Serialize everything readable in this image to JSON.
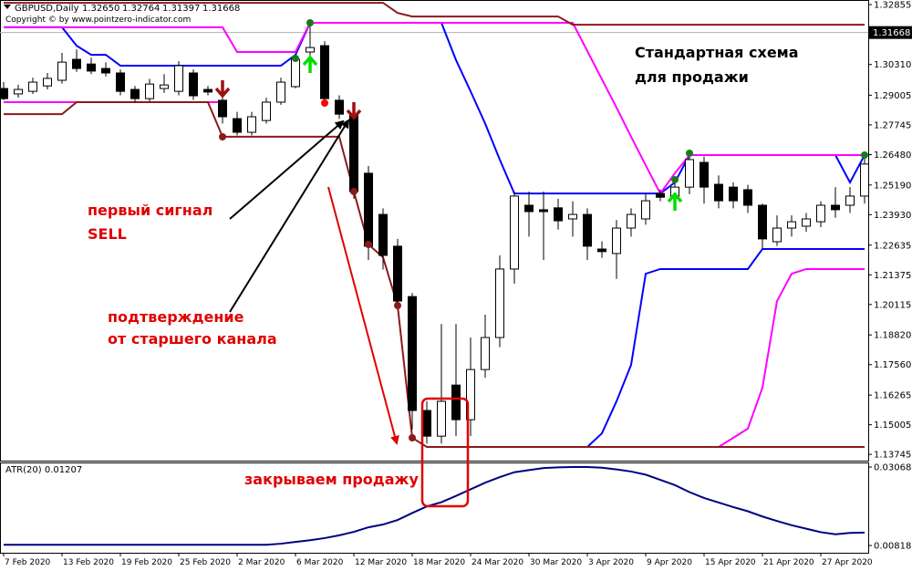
{
  "header": {
    "symbol": "GBPUSD,Daily",
    "quote": [
      "1.32650",
      "1.32764",
      "1.31397",
      "1.31668"
    ],
    "copyright": "Copyright © by www.pointzero-indicator.com"
  },
  "chart_data": [
    {
      "type": "candlestick",
      "categories": [
        "7 Feb 2020",
        null,
        null,
        null,
        "13 Feb 2020",
        null,
        null,
        null,
        "19 Feb 2020",
        null,
        null,
        null,
        "25 Feb 2020",
        null,
        null,
        null,
        "2 Mar 2020",
        null,
        null,
        null,
        "6 Mar 2020",
        null,
        null,
        null,
        "12 Mar 2020",
        null,
        null,
        null,
        "18 Mar 2020",
        null,
        null,
        null,
        "24 Mar 2020",
        null,
        null,
        null,
        "30 Mar 2020",
        null,
        null,
        null,
        "3 Apr 2020",
        null,
        null,
        null,
        "9 Apr 2020",
        null,
        null,
        null,
        "15 Apr 2020",
        null,
        null,
        null,
        "21 Apr 2020",
        null,
        null,
        null,
        "27 Apr 2020",
        null,
        null,
        null
      ],
      "open": [
        1.2929,
        1.2906,
        1.2917,
        1.294,
        1.2964,
        1.3053,
        1.3033,
        1.3014,
        1.2995,
        1.2925,
        1.2886,
        1.2929,
        1.2917,
        1.2995,
        1.2925,
        1.2879,
        1.2801,
        1.2743,
        1.2793,
        1.2871,
        1.2937,
        1.3084,
        1.3111,
        1.2879,
        1.282,
        1.2569,
        1.2394,
        1.2259,
        1.2045,
        1.1561,
        1.1452,
        1.1669,
        1.1522,
        1.1735,
        1.1871,
        1.2162,
        1.2433,
        1.2414,
        1.2422,
        1.2375,
        1.2394,
        1.2247,
        1.2228,
        1.2336,
        1.2375,
        1.2483,
        1.2472,
        1.251,
        1.2615,
        1.2522,
        1.251,
        1.2499,
        1.2433,
        1.2278,
        1.2336,
        1.2344,
        1.2363,
        1.2433,
        1.2433,
        1.2472
      ],
      "high": [
        1.2956,
        1.2945,
        1.2975,
        1.2995,
        1.308,
        1.3095,
        1.306,
        1.304,
        1.301,
        1.294,
        1.297,
        1.299,
        1.3045,
        1.301,
        1.294,
        1.29,
        1.283,
        1.283,
        1.289,
        1.2975,
        1.307,
        1.3208,
        1.313,
        1.29,
        1.283,
        1.26,
        1.242,
        1.229,
        1.206,
        1.16,
        1.1929,
        1.1929,
        1.1871,
        1.1968,
        1.222,
        1.2491,
        1.2491,
        1.2491,
        1.246,
        1.245,
        1.242,
        1.228,
        1.237,
        1.242,
        1.248,
        1.25,
        1.253,
        1.265,
        1.264,
        1.256,
        1.253,
        1.252,
        1.244,
        1.239,
        1.239,
        1.24,
        1.245,
        1.251,
        1.251,
        1.265
      ],
      "low": [
        1.2879,
        1.289,
        1.2906,
        1.2925,
        1.295,
        1.3,
        1.299,
        1.298,
        1.29,
        1.287,
        1.2875,
        1.291,
        1.29,
        1.288,
        1.29,
        1.278,
        1.273,
        1.273,
        1.278,
        1.286,
        1.293,
        1.306,
        1.287,
        1.28,
        1.246,
        1.22,
        1.216,
        1.2,
        1.148,
        1.142,
        1.142,
        1.1452,
        1.1452,
        1.17,
        1.183,
        1.21,
        1.23,
        1.22,
        1.233,
        1.23,
        1.22,
        1.221,
        1.212,
        1.23,
        1.235,
        1.245,
        1.244,
        1.248,
        1.244,
        1.242,
        1.242,
        1.24,
        1.225,
        1.226,
        1.23,
        1.232,
        1.234,
        1.238,
        1.24,
        1.244
      ],
      "close": [
        1.2886,
        1.2925,
        1.2956,
        1.2972,
        1.3041,
        1.3014,
        1.3003,
        1.2995,
        1.2917,
        1.2886,
        1.2948,
        1.2944,
        1.3026,
        1.2898,
        1.2914,
        1.2809,
        1.2743,
        1.2809,
        1.2871,
        1.2956,
        1.3053,
        1.3103,
        1.2886,
        1.282,
        1.2491,
        1.2259,
        1.222,
        1.2026,
        1.1561,
        1.1452,
        1.16,
        1.1522,
        1.1735,
        1.1871,
        1.2162,
        1.2472,
        1.2406,
        1.2406,
        1.2367,
        1.2394,
        1.2259,
        1.2236,
        1.2336,
        1.2394,
        1.2452,
        1.2467,
        1.251,
        1.2627,
        1.251,
        1.2452,
        1.2452,
        1.2433,
        1.229,
        1.2336,
        1.2363,
        1.2375,
        1.2433,
        1.2414,
        1.2472,
        1.2608
      ],
      "colors": {
        "up": "#ffffff",
        "down": "#000000"
      },
      "lines": [
        {
          "color": "#0000ff",
          "values": [
            1.3189,
            1.3189,
            1.3189,
            1.3189,
            1.3189,
            1.3111,
            1.3072,
            1.3072,
            1.3026,
            1.3026,
            1.3026,
            1.3026,
            1.3026,
            1.3026,
            1.3026,
            1.3026,
            1.3026,
            1.3026,
            1.3026,
            1.3026,
            1.3072,
            1.3208,
            1.3208,
            1.3208,
            1.3208,
            1.3208,
            1.3208,
            1.3208,
            1.3208,
            1.3208,
            1.3208,
            1.305,
            1.2917,
            1.278,
            1.2627,
            1.2483,
            1.2483,
            1.2483,
            1.2483,
            1.2483,
            1.2483,
            1.2483,
            1.2483,
            1.2483,
            1.2483,
            1.2483,
            1.253,
            1.2646,
            1.2646,
            1.2646,
            1.2646,
            1.2646,
            1.2646,
            1.2646,
            1.2646,
            1.2646,
            1.2646,
            1.2646,
            1.253,
            1.2646
          ]
        },
        {
          "color": "#0000ff",
          "values": [
            null,
            null,
            null,
            null,
            null,
            null,
            null,
            null,
            null,
            null,
            null,
            null,
            null,
            null,
            null,
            null,
            null,
            null,
            null,
            null,
            null,
            null,
            null,
            null,
            null,
            null,
            null,
            null,
            null,
            null,
            null,
            null,
            null,
            null,
            null,
            null,
            null,
            null,
            null,
            1.1406,
            1.1406,
            1.1464,
            1.16,
            1.1755,
            1.2142,
            1.2162,
            1.2162,
            1.2162,
            1.2162,
            1.2162,
            1.2162,
            1.2162,
            1.2247,
            1.2247,
            1.2247,
            1.2247,
            1.2247,
            1.2247,
            1.2247,
            1.2247
          ]
        },
        {
          "color": "#ff00ff",
          "values": [
            1.3189,
            1.3189,
            1.3189,
            1.3189,
            1.3189,
            1.3189,
            1.3189,
            1.3189,
            1.3189,
            1.3189,
            1.3189,
            1.3189,
            1.3189,
            1.3189,
            1.3189,
            1.3189,
            1.3084,
            1.3084,
            1.3084,
            1.3084,
            1.3084,
            1.3208,
            1.3208,
            1.3208,
            1.3208,
            1.3208,
            1.3208,
            1.3208,
            1.3208,
            1.3208,
            1.3208,
            1.3208,
            1.3208,
            1.3208,
            1.3208,
            1.3208,
            1.3208,
            1.3208,
            1.3208,
            1.3208,
            1.3088,
            1.2968,
            1.2848,
            1.2724,
            1.2603,
            1.2483,
            1.2569,
            1.2646,
            1.2646,
            1.2646,
            1.2646,
            1.2646,
            1.2646,
            1.2646,
            1.2646,
            1.2646,
            1.2646,
            1.2646,
            1.2646,
            1.2646
          ]
        },
        {
          "color": "#ff00ff",
          "values": [
            1.2871,
            1.2871,
            1.2871,
            1.2871,
            1.2871,
            1.2871,
            1.2871,
            1.2871,
            1.2871,
            1.2871,
            1.2871,
            1.2871,
            1.2871,
            1.2871,
            1.2871,
            1.2871,
            null,
            null,
            null,
            null,
            null,
            null,
            null,
            null,
            null,
            null,
            null,
            null,
            null,
            null,
            null,
            null,
            null,
            null,
            null,
            null,
            null,
            null,
            null,
            null,
            null,
            null,
            null,
            null,
            null,
            null,
            null,
            null,
            null,
            1.1406,
            1.1445,
            1.1484,
            1.1658,
            1.2026,
            1.2142,
            1.2162,
            1.2162,
            1.2162,
            1.2162,
            1.2162
          ]
        },
        {
          "color": "#8b1a1a",
          "values": [
            1.3293,
            1.3293,
            1.3293,
            1.3293,
            1.3293,
            1.3293,
            1.3293,
            1.3293,
            1.3293,
            1.3293,
            1.3293,
            1.3293,
            1.3293,
            1.3293,
            1.3293,
            1.3293,
            1.3293,
            1.3293,
            1.3293,
            1.3293,
            1.3293,
            1.3293,
            1.3293,
            1.3293,
            1.3293,
            1.3293,
            1.3293,
            1.325,
            1.3235,
            1.3235,
            1.3235,
            1.3235,
            1.3235,
            1.3235,
            1.3235,
            1.3235,
            1.3235,
            1.3235,
            1.3235,
            1.32,
            1.32,
            1.32,
            1.32,
            1.32,
            1.32,
            1.32,
            1.32,
            1.32,
            1.32,
            1.32,
            1.32,
            1.32,
            1.32,
            1.32,
            1.32,
            1.32,
            1.32,
            1.32,
            1.32,
            1.32
          ]
        },
        {
          "color": "#8b1a1a",
          "values": [
            1.282,
            1.282,
            1.282,
            1.282,
            1.282,
            1.2871,
            1.2871,
            1.2871,
            1.2871,
            1.2871,
            1.2871,
            1.2871,
            1.2871,
            1.2871,
            1.2871,
            1.2724,
            1.2724,
            1.2724,
            1.2724,
            1.2724,
            1.2724,
            1.2724,
            1.2724,
            1.2724,
            1.2491,
            1.2266,
            1.2212,
            1.2006,
            1.1445,
            1.1406,
            1.1406,
            1.1406,
            1.1406,
            1.1406,
            1.1406,
            1.1406,
            1.1406,
            1.1406,
            1.1406,
            1.1406,
            1.1406,
            1.1406,
            1.1406,
            1.1406,
            1.1406,
            1.1406,
            1.1406,
            1.1406,
            1.1406,
            1.1406,
            1.1406,
            1.1406,
            1.1406,
            1.1406,
            1.1406,
            1.1406,
            1.1406,
            1.1406,
            1.1406,
            1.1406
          ]
        }
      ],
      "ylim": [
        1.1348,
        1.3305
      ],
      "yticks": [
        1.32855,
        {
          "value": 1.3031,
          "label": "1.30310"
        },
        1.29005,
        1.27745,
        {
          "value": 1.2648,
          "label": "1.26480"
        },
        {
          "value": 1.2519,
          "label": "1.25190"
        },
        {
          "value": 1.2393,
          "label": "1.23930"
        },
        1.22635,
        1.21375,
        1.20115,
        {
          "value": 1.1882,
          "label": "1.18820"
        },
        {
          "value": 1.1756,
          "label": "1.17560"
        },
        1.16265,
        1.15005,
        1.13745
      ],
      "current_price": 1.31668,
      "annotations": [
        "Стандартная схема",
        "для продажи",
        "первый сигнал",
        "SELL",
        "подтверждение",
        "от старшего канала",
        "закрываем продажу"
      ]
    },
    {
      "type": "line",
      "title": "ATR(20) 0.01207",
      "color": "#000080",
      "values": [
        0.0084,
        0.0084,
        0.0084,
        0.0084,
        0.0084,
        0.0084,
        0.0084,
        0.0084,
        0.0084,
        0.0084,
        0.0084,
        0.0084,
        0.0084,
        0.0084,
        0.0084,
        0.0084,
        0.0084,
        0.0084,
        0.0084,
        0.0087,
        0.0092,
        0.0097,
        0.0103,
        0.0111,
        0.0121,
        0.0134,
        0.0142,
        0.0155,
        0.0175,
        0.0194,
        0.0206,
        0.0224,
        0.0243,
        0.0262,
        0.0278,
        0.0292,
        0.0298,
        0.0304,
        0.0306,
        0.0307,
        0.0307,
        0.0305,
        0.03,
        0.0294,
        0.0285,
        0.027,
        0.0255,
        0.0235,
        0.0218,
        0.0205,
        0.0192,
        0.018,
        0.0165,
        0.0152,
        0.014,
        0.013,
        0.012,
        0.0114,
        0.0118,
        0.0119
      ],
      "ylim": [
        0.0061,
        0.032
      ],
      "yticks": [
        0.03068,
        0.00818
      ]
    }
  ]
}
